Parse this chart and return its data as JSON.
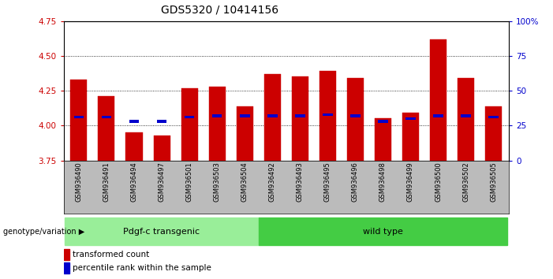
{
  "title": "GDS5320 / 10414156",
  "categories": [
    "GSM936490",
    "GSM936491",
    "GSM936494",
    "GSM936497",
    "GSM936501",
    "GSM936503",
    "GSM936504",
    "GSM936492",
    "GSM936493",
    "GSM936495",
    "GSM936496",
    "GSM936498",
    "GSM936499",
    "GSM936500",
    "GSM936502",
    "GSM936505"
  ],
  "bar_values": [
    4.33,
    4.21,
    3.95,
    3.93,
    4.27,
    4.28,
    4.14,
    4.37,
    4.35,
    4.39,
    4.34,
    4.05,
    4.09,
    4.62,
    4.34,
    4.14
  ],
  "blue_marker_values": [
    4.06,
    4.06,
    4.03,
    4.03,
    4.06,
    4.07,
    4.07,
    4.07,
    4.07,
    4.08,
    4.07,
    4.03,
    4.05,
    4.07,
    4.07,
    4.06
  ],
  "bar_color": "#cc0000",
  "blue_color": "#0000cc",
  "ymin": 3.75,
  "ymax": 4.75,
  "yticks": [
    3.75,
    4.0,
    4.25,
    4.5,
    4.75
  ],
  "right_yticks": [
    0,
    25,
    50,
    75,
    100
  ],
  "right_yticklabels": [
    "0",
    "25",
    "50",
    "75",
    "100%"
  ],
  "grid_values": [
    4.0,
    4.25,
    4.5
  ],
  "group1_label": "Pdgf-c transgenic",
  "group2_label": "wild type",
  "group1_count": 7,
  "group2_count": 9,
  "group_label_prefix": "genotype/variation",
  "group1_color": "#99ee99",
  "group2_color": "#44cc44",
  "legend1_label": "transformed count",
  "legend2_label": "percentile rank within the sample",
  "bar_width": 0.6,
  "background_color": "#ffffff",
  "plot_bg": "#ffffff",
  "axis_tick_color_left": "#cc0000",
  "axis_tick_color_right": "#0000cc",
  "xlabel_bg": "#bbbbbb",
  "title_fontsize": 10,
  "tick_fontsize": 7.5,
  "cat_fontsize": 6,
  "legend_fontsize": 7.5,
  "group_fontsize": 8
}
